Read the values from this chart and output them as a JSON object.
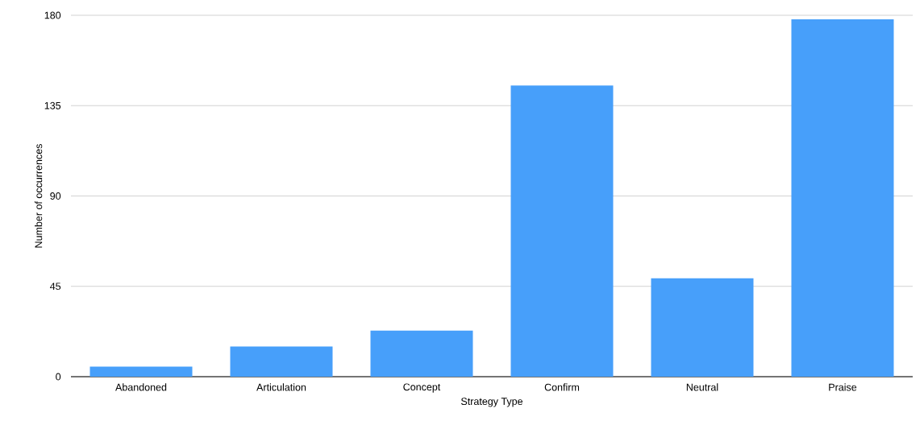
{
  "chart_data": {
    "type": "bar",
    "xlabel": "Strategy Type",
    "ylabel": "Number of occurrences",
    "categories": [
      "Abandoned",
      "Articulation",
      "Concept",
      "Confirm",
      "Neutral",
      "Praise"
    ],
    "values": [
      5,
      15,
      23,
      145,
      49,
      178
    ],
    "color": "#479ffa",
    "ylim": [
      0,
      180
    ],
    "yticks": [
      0,
      45,
      90,
      135,
      180
    ],
    "grid": "y"
  }
}
